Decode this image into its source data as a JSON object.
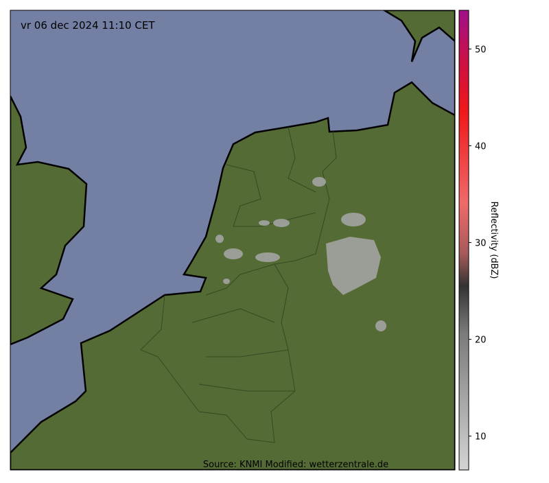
{
  "map": {
    "timestamp": "vr 06 dec 2024 11:10 CET",
    "source": "Source: KNMI Modified: wetterzentrale.de"
  },
  "colorbar": {
    "label": "Reflectivity (dBZ)",
    "lim": [
      6.5,
      54
    ],
    "ticks": [
      10,
      20,
      30,
      40,
      50
    ]
  }
}
